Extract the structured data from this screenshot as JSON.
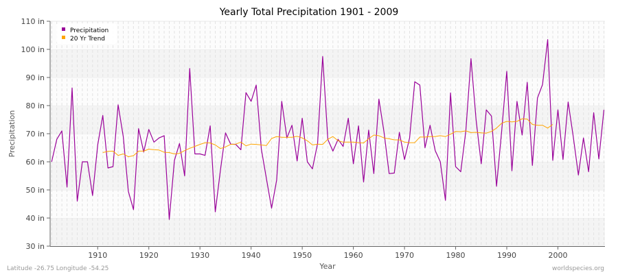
{
  "chart_data": {
    "type": "line",
    "title": "Yearly Total Precipitation 1901 - 2009",
    "xlabel": "Year",
    "ylabel": "Precipitation",
    "xlim": [
      1900.7,
      2009.2
    ],
    "ylim": [
      30,
      110
    ],
    "x_ticks": [
      1910,
      1920,
      1930,
      1940,
      1950,
      1960,
      1970,
      1980,
      1990,
      2000
    ],
    "y_ticks": [
      30,
      40,
      50,
      60,
      70,
      80,
      90,
      100,
      110
    ],
    "y_tick_labels": [
      "30 in",
      "40 in",
      "50 in",
      "60 in",
      "70 in",
      "80 in",
      "90 in",
      "100 in",
      "110 in"
    ],
    "grid": true,
    "legend_position": "top-left",
    "series": [
      {
        "name": "Precipitation",
        "color": "#990099",
        "x_start": 1901,
        "values": [
          60,
          68,
          71,
          51,
          86.3,
          46,
          60,
          60,
          48,
          66,
          76.5,
          57.8,
          58.3,
          80.3,
          69,
          49.5,
          43,
          71.8,
          63.5,
          71.5,
          67,
          68.5,
          69.3,
          39.5,
          60.5,
          66.5,
          55,
          93.2,
          62.8,
          62.8,
          62.3,
          72.8,
          42.2,
          57,
          70.3,
          66.3,
          66.2,
          64.3,
          84.6,
          81.5,
          87.3,
          64.5,
          54,
          43.5,
          53.5,
          81.5,
          68.5,
          73,
          60.3,
          75.5,
          60,
          57.5,
          66.5,
          97.5,
          68,
          63.8,
          68,
          65.5,
          75.5,
          59.3,
          72.8,
          52.8,
          71.3,
          55.8,
          82.3,
          70.5,
          55.8,
          56,
          70.5,
          60.8,
          68.5,
          88.5,
          87.3,
          65,
          73,
          64,
          60,
          46.3,
          84.5,
          58.3,
          56.5,
          71,
          96.7,
          75,
          59.3,
          78.5,
          76.3,
          51.3,
          71,
          92.2,
          56.8,
          81.5,
          69.5,
          88.3,
          58.7,
          82.7,
          87.5,
          103.5,
          60.5,
          78.5,
          60.8,
          81.3,
          69,
          55.3,
          68.5,
          56.5,
          77.5,
          61,
          78.5
        ]
      },
      {
        "name": "20 Yr Trend",
        "color": "#FFA500",
        "x_start": 1911,
        "values": [
          63.3,
          63.7,
          63.8,
          62.3,
          62.8,
          61.8,
          62.2,
          63.8,
          63.8,
          64.5,
          64.3,
          64.2,
          63.4,
          63.3,
          62.8,
          63.0,
          64.0,
          64.8,
          65.5,
          66.2,
          66.8,
          66.7,
          66.0,
          64.7,
          65.3,
          66.2,
          66.3,
          67.0,
          65.7,
          66.3,
          66.2,
          66.0,
          65.8,
          68.3,
          69.0,
          68.7,
          68.7,
          68.7,
          69.1,
          68.5,
          67.5,
          66.0,
          66.3,
          66.2,
          68.0,
          69.0,
          67.5,
          67.0,
          67.0,
          67.0,
          66.8,
          66.7,
          68.2,
          69.5,
          69.3,
          68.5,
          68.2,
          67.8,
          67.8,
          67.0,
          66.8,
          66.8,
          68.8,
          68.8,
          69.0,
          69.0,
          69.3,
          69.0,
          69.8,
          70.8,
          70.7,
          71.0,
          70.4,
          70.5,
          70.3,
          70.2,
          70.8,
          72.0,
          73.7,
          74.4,
          74.2,
          74.4,
          75.3,
          75.2,
          73.3,
          73.0,
          73.0,
          72.0,
          73.3
        ]
      }
    ]
  },
  "footer": {
    "location": "Latitude -26.75 Longitude -54.25",
    "site": "worldspecies.org"
  }
}
